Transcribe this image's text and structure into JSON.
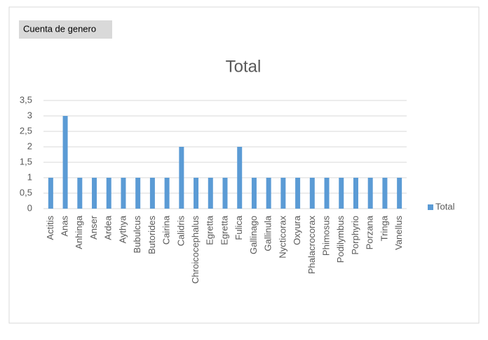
{
  "chart_data": {
    "type": "bar",
    "title": "Total",
    "field_button": "Cuenta de genero",
    "categories": [
      "Actitis",
      "Anas",
      "Anhinga",
      "Anser",
      "Ardea",
      "Aythya",
      "Bubulcus",
      "Butorides",
      "Cairina",
      "Calidris",
      "Chroicocephalus",
      "Egretta",
      "Egretta",
      "Fulica",
      "Gallinago",
      "Gallinula",
      "Nycticorax",
      "Oxyura",
      "Phalacrocorax",
      "Phimosus",
      "Podilymbus",
      "Porphyrio",
      "Porzana",
      "Tringa",
      "Vanellus"
    ],
    "series": [
      {
        "name": "Total",
        "color": "#5b9bd5",
        "values": [
          1,
          3,
          1,
          1,
          1,
          1,
          1,
          1,
          1,
          2,
          1,
          1,
          1,
          2,
          1,
          1,
          1,
          1,
          1,
          1,
          1,
          1,
          1,
          1,
          1
        ]
      }
    ],
    "ylim": [
      0,
      3.5
    ],
    "yticks": [
      0,
      {
        "value": 0.5,
        "label": "0,5"
      },
      1,
      {
        "value": 1.5,
        "label": "1,5"
      },
      2,
      {
        "value": 2.5,
        "label": "2,5"
      },
      3,
      {
        "value": 3.5,
        "label": "3,5"
      }
    ],
    "grid": true,
    "legend": "right"
  }
}
